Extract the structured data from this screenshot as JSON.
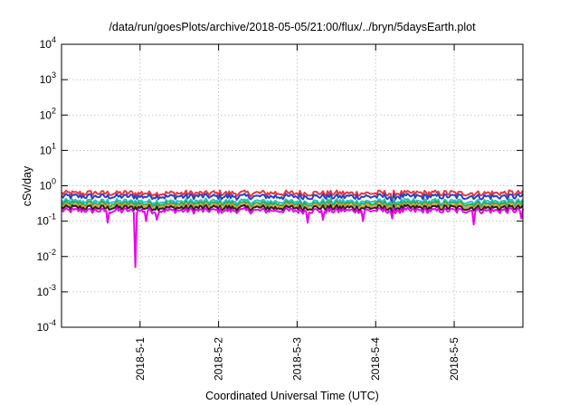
{
  "chart_data": {
    "type": "line",
    "title": "/data/run/goesPlots/archive/2018-05-05/21:00/flux/../bryn/5daysEarth.plot",
    "xlabel": "Coordinated Universal Time (UTC)",
    "ylabel": "cSv/day",
    "yscale": "log",
    "ylim": [
      0.0001,
      10000
    ],
    "xlim": [
      "2018-04-30 00:00",
      "2018-05-05 21:00"
    ],
    "grid": true,
    "legend": "none",
    "y_ticks": [
      {
        "base": "10",
        "exp": "-4"
      },
      {
        "base": "10",
        "exp": "-3"
      },
      {
        "base": "10",
        "exp": "-2"
      },
      {
        "base": "10",
        "exp": "-1"
      },
      {
        "base": "10",
        "exp": "0"
      },
      {
        "base": "10",
        "exp": "1"
      },
      {
        "base": "10",
        "exp": "2"
      },
      {
        "base": "10",
        "exp": "3"
      },
      {
        "base": "10",
        "exp": "4"
      }
    ],
    "x_ticks": [
      "2018-5-1",
      "2018-5-2",
      "2018-5-3",
      "2018-5-4",
      "2018-5-5"
    ],
    "x_tick_dates": [
      "2018-05-01",
      "2018-05-02",
      "2018-05-03",
      "2018-05-04",
      "2018-05-05"
    ],
    "series": [
      {
        "color": "#e8383a",
        "baseline": 0.62,
        "spikes": [
          [
            "2018-05-04 05:00",
            0.3
          ]
        ]
      },
      {
        "color": "#2a3fcf",
        "baseline": 0.5,
        "spikes": [
          [
            "2018-05-04 05:00",
            0.25
          ]
        ]
      },
      {
        "color": "#22c3c6",
        "baseline": 0.36,
        "spikes": [
          [
            "2018-05-04 05:00",
            0.2
          ]
        ]
      },
      {
        "color": "#2fa84f",
        "baseline": 0.31,
        "spikes": [
          [
            "2018-05-04 05:00",
            0.18
          ]
        ]
      },
      {
        "color": "#e0a030",
        "baseline": 0.27,
        "spikes": [
          [
            "2018-05-04 05:00",
            0.16
          ]
        ]
      },
      {
        "color": "#222222",
        "baseline": 0.24,
        "spikes": [
          [
            "2018-05-04 05:00",
            0.15
          ]
        ]
      },
      {
        "color": "#ee00ee",
        "baseline": 0.2,
        "spikes": [
          [
            "2018-04-30 22:40",
            0.005
          ],
          [
            "2018-04-30 14:00",
            0.09
          ],
          [
            "2018-05-01 02:00",
            0.1
          ],
          [
            "2018-05-01 05:00",
            0.11
          ],
          [
            "2018-05-03 03:00",
            0.09
          ],
          [
            "2018-05-03 08:00",
            0.11
          ],
          [
            "2018-05-03 20:00",
            0.1
          ],
          [
            "2018-05-04 05:00",
            0.12
          ],
          [
            "2018-05-05 06:00",
            0.08
          ],
          [
            "2018-05-05 20:30",
            0.12
          ]
        ]
      }
    ]
  }
}
